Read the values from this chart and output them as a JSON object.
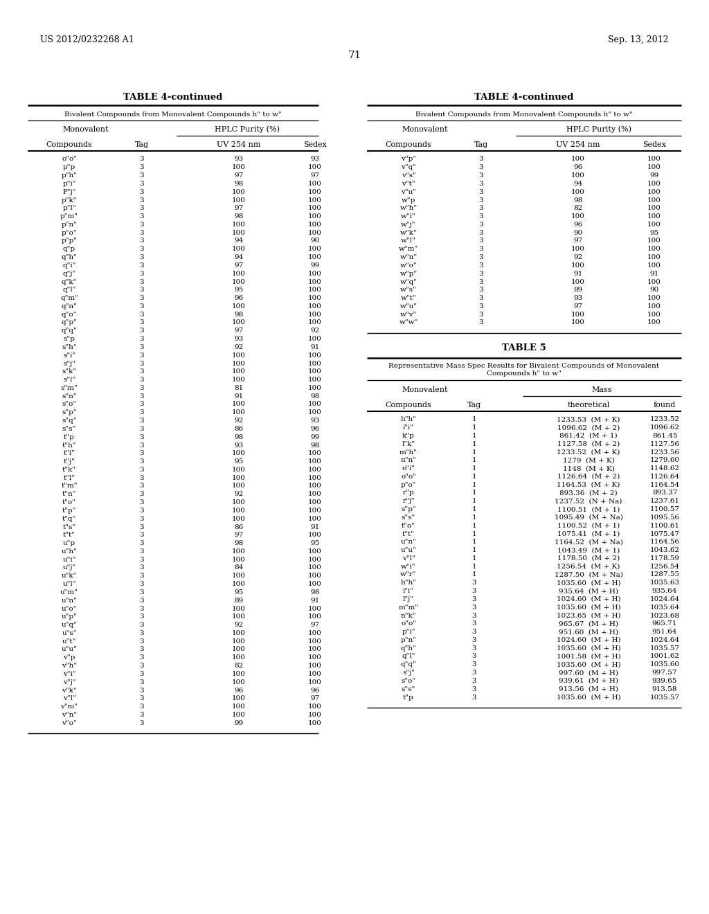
{
  "header_left": "US 2012/0232268 A1",
  "header_right": "Sep. 13, 2012",
  "page_number": "71",
  "table4_left_title": "TABLE 4-continued",
  "table4_left_subtitle": "Bivalent Compounds from Monovalent Compounds h\" to w\"",
  "table4_left_sub_headers": [
    "Compounds",
    "Tag",
    "UV 254 nm",
    "Sedex"
  ],
  "table4_left_data": [
    [
      "o\"o\"",
      "3",
      "93",
      "93"
    ],
    [
      "p\"p",
      "3",
      "100",
      "100"
    ],
    [
      "p\"h\"",
      "3",
      "97",
      "97"
    ],
    [
      "p\"i\"",
      "3",
      "98",
      "100"
    ],
    [
      "P\"j\"",
      "3",
      "100",
      "100"
    ],
    [
      "p\"k\"",
      "3",
      "100",
      "100"
    ],
    [
      "p\"l\"",
      "3",
      "97",
      "100"
    ],
    [
      "p\"m\"",
      "3",
      "98",
      "100"
    ],
    [
      "p\"n\"",
      "3",
      "100",
      "100"
    ],
    [
      "p\"o\"",
      "3",
      "100",
      "100"
    ],
    [
      "p\"p\"",
      "3",
      "94",
      "90"
    ],
    [
      "q\"p",
      "3",
      "100",
      "100"
    ],
    [
      "q\"h\"",
      "3",
      "94",
      "100"
    ],
    [
      "q\"i\"",
      "3",
      "97",
      "99"
    ],
    [
      "q\"j\"",
      "3",
      "100",
      "100"
    ],
    [
      "q\"k\"",
      "3",
      "100",
      "100"
    ],
    [
      "q\"l\"",
      "3",
      "95",
      "100"
    ],
    [
      "q\"m\"",
      "3",
      "96",
      "100"
    ],
    [
      "q\"n\"",
      "3",
      "100",
      "100"
    ],
    [
      "q\"o\"",
      "3",
      "98",
      "100"
    ],
    [
      "q\"p\"",
      "3",
      "100",
      "100"
    ],
    [
      "q\"q\"",
      "3",
      "97",
      "92"
    ],
    [
      "s\"p",
      "3",
      "93",
      "100"
    ],
    [
      "s\"h\"",
      "3",
      "92",
      "91"
    ],
    [
      "s\"i\"",
      "3",
      "100",
      "100"
    ],
    [
      "s\"j\"",
      "3",
      "100",
      "100"
    ],
    [
      "s\"k\"",
      "3",
      "100",
      "100"
    ],
    [
      "s\"l\"",
      "3",
      "100",
      "100"
    ],
    [
      "s\"m\"",
      "3",
      "81",
      "100"
    ],
    [
      "s\"n\"",
      "3",
      "91",
      "98"
    ],
    [
      "s\"o\"",
      "3",
      "100",
      "100"
    ],
    [
      "s\"p\"",
      "3",
      "100",
      "100"
    ],
    [
      "s\"q\"",
      "3",
      "92",
      "93"
    ],
    [
      "s\"s\"",
      "3",
      "86",
      "96"
    ],
    [
      "t\"p",
      "3",
      "98",
      "99"
    ],
    [
      "t\"h\"",
      "3",
      "93",
      "98"
    ],
    [
      "t\"i\"",
      "3",
      "100",
      "100"
    ],
    [
      "t\"j\"",
      "3",
      "95",
      "100"
    ],
    [
      "t\"k\"",
      "3",
      "100",
      "100"
    ],
    [
      "t\"l\"",
      "3",
      "100",
      "100"
    ],
    [
      "t\"m\"",
      "3",
      "100",
      "100"
    ],
    [
      "t\"n\"",
      "3",
      "92",
      "100"
    ],
    [
      "t\"o\"",
      "3",
      "100",
      "100"
    ],
    [
      "t\"p\"",
      "3",
      "100",
      "100"
    ],
    [
      "t\"q\"",
      "3",
      "100",
      "100"
    ],
    [
      "t\"s\"",
      "3",
      "86",
      "91"
    ],
    [
      "t\"t\"",
      "3",
      "97",
      "100"
    ],
    [
      "u\"p",
      "3",
      "98",
      "95"
    ],
    [
      "u\"h\"",
      "3",
      "100",
      "100"
    ],
    [
      "u\"i\"",
      "3",
      "100",
      "100"
    ],
    [
      "u\"j\"",
      "3",
      "84",
      "100"
    ],
    [
      "u\"k\"",
      "3",
      "100",
      "100"
    ],
    [
      "u\"l\"",
      "3",
      "100",
      "100"
    ],
    [
      "u\"m\"",
      "3",
      "95",
      "98"
    ],
    [
      "u\"n\"",
      "3",
      "89",
      "91"
    ],
    [
      "u\"o\"",
      "3",
      "100",
      "100"
    ],
    [
      "u\"p\"",
      "3",
      "100",
      "100"
    ],
    [
      "u\"q\"",
      "3",
      "92",
      "97"
    ],
    [
      "u\"s\"",
      "3",
      "100",
      "100"
    ],
    [
      "u\"t\"",
      "3",
      "100",
      "100"
    ],
    [
      "u\"u\"",
      "3",
      "100",
      "100"
    ],
    [
      "v\"p",
      "3",
      "100",
      "100"
    ],
    [
      "v\"h\"",
      "3",
      "82",
      "100"
    ],
    [
      "v\"i\"",
      "3",
      "100",
      "100"
    ],
    [
      "v\"j\"",
      "3",
      "100",
      "100"
    ],
    [
      "v\"k\"",
      "3",
      "96",
      "96"
    ],
    [
      "v\"l\"",
      "3",
      "100",
      "97"
    ],
    [
      "v\"m\"",
      "3",
      "100",
      "100"
    ],
    [
      "v\"n\"",
      "3",
      "100",
      "100"
    ],
    [
      "v\"o\"",
      "3",
      "99",
      "100"
    ]
  ],
  "table4_right_title": "TABLE 4-continued",
  "table4_right_subtitle": "Bivalent Compounds from Monovalent Compounds h\" to w\"",
  "table4_right_sub_headers": [
    "Compounds",
    "Tag",
    "UV 254 nm",
    "Sedex"
  ],
  "table4_right_data": [
    [
      "v\"p\"",
      "3",
      "100",
      "100"
    ],
    [
      "v\"q\"",
      "3",
      "96",
      "100"
    ],
    [
      "v\"s\"",
      "3",
      "100",
      "99"
    ],
    [
      "v\"t\"",
      "3",
      "94",
      "100"
    ],
    [
      "v\"u\"",
      "3",
      "100",
      "100"
    ],
    [
      "w\"p",
      "3",
      "98",
      "100"
    ],
    [
      "w\"h\"",
      "3",
      "82",
      "100"
    ],
    [
      "w\"i\"",
      "3",
      "100",
      "100"
    ],
    [
      "w\"j\"",
      "3",
      "96",
      "100"
    ],
    [
      "w\"k\"",
      "3",
      "90",
      "95"
    ],
    [
      "w\"l\"",
      "3",
      "97",
      "100"
    ],
    [
      "w\"m\"",
      "3",
      "100",
      "100"
    ],
    [
      "w\"n\"",
      "3",
      "92",
      "100"
    ],
    [
      "w\"o\"",
      "3",
      "100",
      "100"
    ],
    [
      "w\"p\"",
      "3",
      "91",
      "91"
    ],
    [
      "w\"q\"",
      "3",
      "100",
      "100"
    ],
    [
      "w\"s\"",
      "3",
      "89",
      "90"
    ],
    [
      "w\"t\"",
      "3",
      "93",
      "100"
    ],
    [
      "w\"u\"",
      "3",
      "97",
      "100"
    ],
    [
      "w\"v\"",
      "3",
      "100",
      "100"
    ],
    [
      "w\"w\"",
      "3",
      "100",
      "100"
    ]
  ],
  "table5_title": "TABLE 5",
  "table5_subtitle_line1": "Representative Mass Spec Results for Bivalent Compounds of Monovalent",
  "table5_subtitle_line2": "Compounds h\" to w\"",
  "table5_sub_headers": [
    "Compounds",
    "Tag",
    "theoretical",
    "found"
  ],
  "table5_data": [
    [
      "h\"h\"",
      "1",
      "1233.53  (M + K)",
      "1233.52"
    ],
    [
      "i\"i\"",
      "1",
      "1096.62  (M + 2)",
      "1096.62"
    ],
    [
      "k\"p",
      "1",
      "861.42  (M + 1)",
      "861.45"
    ],
    [
      "l\"k\"",
      "1",
      "1127.58  (M + 2)",
      "1127.56"
    ],
    [
      "m\"h\"",
      "1",
      "1233.52  (M + K)",
      "1233.56"
    ],
    [
      "n\"n\"",
      "1",
      "1279  (M + K)",
      "1279.60"
    ],
    [
      "o\"i\"",
      "1",
      "1148  (M + K)",
      "1148.62"
    ],
    [
      "o\"o\"",
      "1",
      "1126.64  (M + 2)",
      "1126.64"
    ],
    [
      "p\"o\"",
      "1",
      "1164.53  (M + K)",
      "1164.54"
    ],
    [
      "r\"p",
      "1",
      "893.36  (M + 2)",
      "893.37"
    ],
    [
      "r\"j\"",
      "1",
      "1237.52  (N + Na)",
      "1237.61"
    ],
    [
      "s\"p\"",
      "1",
      "1100.51  (M + 1)",
      "1100.57"
    ],
    [
      "s\"s\"",
      "1",
      "1095.49  (M + Na)",
      "1095.56"
    ],
    [
      "t\"o\"",
      "1",
      "1100.52  (M + 1)",
      "1100.61"
    ],
    [
      "t\"t\"",
      "1",
      "1075.41  (M + 1)",
      "1075.47"
    ],
    [
      "u\"n\"",
      "1",
      "1164.52  (M + Na)",
      "1164.56"
    ],
    [
      "u\"u\"",
      "1",
      "1043.49  (M + 1)",
      "1043.62"
    ],
    [
      "v\"l\"",
      "1",
      "1178.50  (M + 2)",
      "1178.59"
    ],
    [
      "w\"i\"",
      "1",
      "1256.54  (M + K)",
      "1256.54"
    ],
    [
      "w\"r\"",
      "1",
      "1287.50  (M + Na)",
      "1287.55"
    ],
    [
      "h\"h\"",
      "3",
      "1035.60  (M + H)",
      "1035.63"
    ],
    [
      "i\"i\"",
      "3",
      "935.64  (M + H)",
      "935.64"
    ],
    [
      "l\"j\"",
      "3",
      "1024.60  (M + H)",
      "1024.64"
    ],
    [
      "m\"m\"",
      "3",
      "1035.60  (M + H)",
      "1035.64"
    ],
    [
      "n\"k\"",
      "3",
      "1023.65  (M + H)",
      "1023.68"
    ],
    [
      "o\"o\"",
      "3",
      "965.67  (M + H)",
      "965.71"
    ],
    [
      "p\"i\"",
      "3",
      "951.60  (M + H)",
      "951.64"
    ],
    [
      "p\"n\"",
      "3",
      "1024.60  (M + H)",
      "1024.64"
    ],
    [
      "q\"h\"",
      "3",
      "1035.60  (M + H)",
      "1035.57"
    ],
    [
      "q\"l\"",
      "3",
      "1001.58  (M + H)",
      "1001.62"
    ],
    [
      "q\"q\"",
      "3",
      "1035.60  (M + H)",
      "1035.60"
    ],
    [
      "s\"j\"",
      "3",
      "997.60  (M + H)",
      "997.57"
    ],
    [
      "s\"o\"",
      "3",
      "939.61  (M + H)",
      "939.65"
    ],
    [
      "s\"s\"",
      "3",
      "913.56  (M + H)",
      "913.58"
    ],
    [
      "t\"p",
      "3",
      "1035.60  (M + H)",
      "1035.57"
    ]
  ],
  "bg_color": "#ffffff",
  "text_color": "#000000"
}
